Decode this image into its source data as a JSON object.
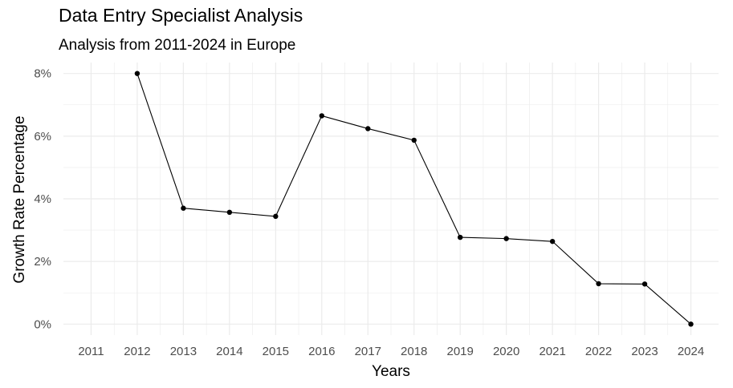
{
  "chart_data": {
    "type": "line",
    "title": "Data Entry Specialist Analysis",
    "subtitle": "Analysis from 2011-2024 in Europe",
    "xlabel": "Years",
    "ylabel": "Growth Rate Percentage",
    "x": [
      2011,
      2012,
      2013,
      2014,
      2015,
      2016,
      2017,
      2018,
      2019,
      2020,
      2021,
      2022,
      2023,
      2024
    ],
    "x_tick_labels": [
      "2011",
      "2012",
      "2013",
      "2014",
      "2015",
      "2016",
      "2017",
      "2018",
      "2019",
      "2020",
      "2021",
      "2022",
      "2023",
      "2024"
    ],
    "series": [
      {
        "x": [
          2012,
          2013,
          2014,
          2015,
          2016,
          2017,
          2018,
          2019,
          2020,
          2021,
          2022,
          2023,
          2024
        ],
        "values": [
          8.0,
          3.7,
          3.57,
          3.44,
          6.65,
          6.24,
          5.87,
          2.77,
          2.73,
          2.64,
          1.29,
          1.28,
          0.0
        ]
      }
    ],
    "y_ticks": [
      0,
      2,
      4,
      6,
      8
    ],
    "y_tick_labels": [
      "0%",
      "2%",
      "4%",
      "6%",
      "8%"
    ],
    "ylim": [
      -0.35,
      8.35
    ],
    "xlim": [
      2010.4,
      2024.6
    ],
    "grid": true,
    "colors": {
      "line": "#000000",
      "grid": "#ebebeb",
      "tick_text": "#4d4d4d"
    }
  }
}
